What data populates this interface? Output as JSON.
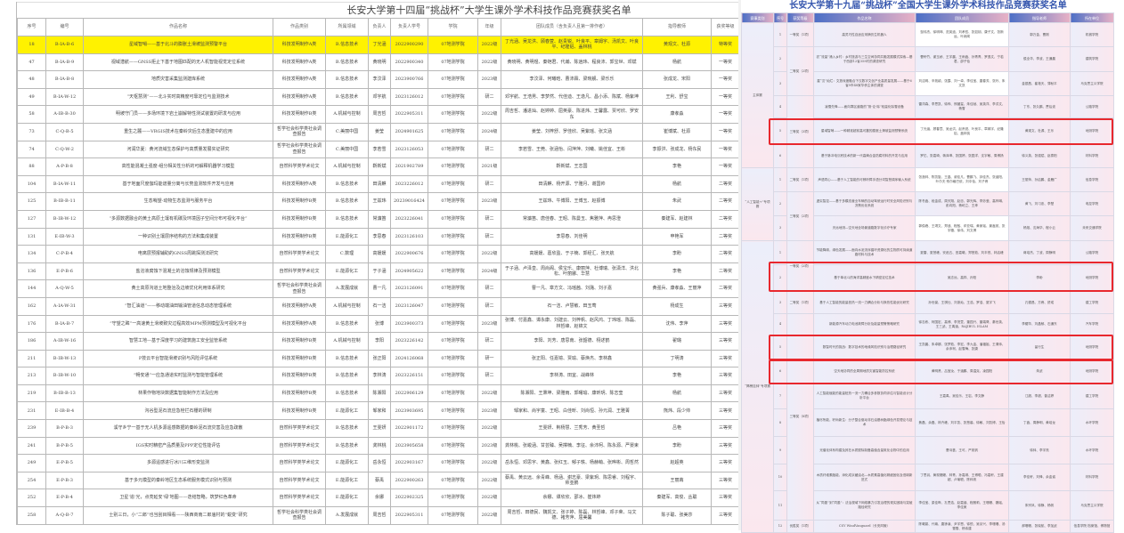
{
  "left": {
    "title": "长安大学第十四届“挑战杯”大学生课外学术科技作品竞赛获奖名单",
    "headers": [
      "序号",
      "编号",
      "作品名称",
      "作品类别",
      "所属领域",
      "负责人",
      "负责人学号",
      "学院",
      "年级",
      "团队成员（含负责人且第一排作者）",
      "指导教师",
      "获奖等级"
    ],
    "highlight_color": "#fff200",
    "rows": [
      [
        "18",
        "B-IA-B-6",
        "星域智哨——基于北斗的膨胀土滑坡监测预警平台",
        "科技发明制作A类",
        "B.信息技术",
        "丁光涵",
        "2022900290",
        "07地测学院",
        "2022级",
        "丁光涵、吴龙洪、顾春萱、赵贵锐、叶良平、章姆宇、汤凯文、叶良平、纪隆铝、盖林桃",
        "黄观文、杜源",
        "特等奖"
      ],
      [
        "47",
        "B-IA-B-9",
        "视域潜航——GNSS拒止下基于地图匹配的无人机智能视觉定位系统",
        "科技发明制作A类",
        "B.信息技术",
        "黄晓明",
        "2022900340",
        "07地测学院",
        "2022级",
        "黄晓明、黄明煜、秦铠君、代瀚、陈逍玮、程良沛、郭宝世、邓斌",
        "杨航",
        "一等奖"
      ],
      [
        "48",
        "B-IA-B-8",
        "地质灾害采集监测建库系统",
        "科技发明制作A类",
        "B.信息技术",
        "李汶泽",
        "2023900766",
        "07地测学院",
        "2023级",
        "李汶泽、何曦晗、曹沛霖、梁琬舰、梁乐乐",
        "张成龙、宋阳",
        "一等奖"
      ],
      [
        "49",
        "B-IA-W-12",
        "“天枢慧测”——北斗实时高精度可靠定位与监测技术",
        "科技发明制作A类",
        "B.信息技术",
        "邓宇航",
        "2023126012",
        "07地测学院",
        "研二",
        "邓宇航、王浩男、李梦然、代佳迪、王逸凡、昌小添、陈斌、杨紫坤",
        "王利、舒宝",
        "一等奖"
      ],
      [
        "58",
        "A-IB-B-30",
        "明坡守门员——多场环境下岩土崩解特性测试装置的研发与应用",
        "科技发明制作B类",
        "A.机械与控制",
        "周吉哲",
        "2022905311",
        "07地测学院",
        "2022级",
        "周吉哲、潘进灿、赵婷婷、屈英豪、陈进炜、王馨露、贾可欣、罗安东",
        "康孝淼",
        "一等奖"
      ],
      [
        "73",
        "C-Q-B-5",
        "重生之麓——VRGIS技术在秦岭灾后生态重建中的应用",
        "哲学社会科学类社会调查报告",
        "C.美丽中国",
        "姜莹",
        "2024901625",
        "07地测学院",
        "2024级",
        "姜莹、刘梓舒、罗佳欣、吴紫瑶、张文涵",
        "崔博斌、杜源",
        "一等奖"
      ],
      [
        "74",
        "C-Q-W-2",
        "河润华夏：黄河流域生态保护与高质量发展实证研究",
        "哲学社会科学类社会调查报告",
        "C.美丽中国",
        "李若雪",
        "2023126053",
        "07地测学院",
        "研二",
        "李若雪、王莞、张涵怡、闫萍萍、刘曦、姚佳宜、王彬",
        "李振洪、张成龙、杨东民",
        "一等奖"
      ],
      [
        "88",
        "A-P-B-8",
        "高性能混凝土强度-组分相关性分析的可解释机器学习模型",
        "自然科学类学术论文",
        "A.机械与控制",
        "靳新斌",
        "2021902789",
        "07地测学院",
        "2021级",
        "靳新斌、王志国",
        "李艳",
        "一等奖"
      ],
      [
        "104",
        "B-IA-W-11",
        "基于地面尺度伽玛能谱量分离与长势监测软件开发与应用",
        "科技发明制作A类",
        "B.信息技术",
        "田清麒",
        "2023226012",
        "07地测学院",
        "研二",
        "田清麒、杨开源、宁雅月、谢国帅",
        "杨航",
        "二等奖"
      ],
      [
        "125",
        "B-IB-B-11",
        "生态哨望-动物生态监测与服务平台",
        "科技发明制作B类",
        "B.信息技术",
        "王兹玮",
        "20239016424",
        "07地测学院",
        "2023级",
        "王兹玮、牛博阳、王博玉、赵振博",
        "朱武",
        "二等奖"
      ],
      [
        "127",
        "B-IB-W-12",
        "“多源数据融合的黄土高原土壤有机碳及环境因子空间分布可视化平台”",
        "科技发明制作B类",
        "B.信息技术",
        "常濂笛",
        "2023226041",
        "07地测学院",
        "研二",
        "常濂笛、唐佳春、王昭、陈曼玉、焦雅萍、冉思澄",
        "秦建军、赵建林",
        "二等奖"
      ],
      [
        "131",
        "E-IB-W-3",
        "一种识别土壤层序结构的方法和集成装置",
        "科技发明制作B类",
        "E.能源化工",
        "李思春",
        "2023126103",
        "07地测学院",
        "研二",
        "李思春、刘佳明",
        "申艳军",
        "二等奖"
      ],
      [
        "134",
        "C-P-B-4",
        "电离层预报辅助的GNSS周跳探测法研究",
        "自然科学类学术论文",
        "C.数理",
        "高媛媛",
        "2022900676",
        "07地测学院",
        "2022级",
        "高媛媛、葛欣盈、于子楠、郭经汇、张天航",
        "李盼",
        "二等奖"
      ],
      [
        "136",
        "E-P-B-6",
        "盐溶液腐蚀下混凝土的溶蚀规律及预测模型",
        "自然科学类学术论文",
        "E.能源化工",
        "于子涵",
        "2024905622",
        "07地测学院",
        "2024级",
        "于子涵、卢泽皇、周尚阁、侯宝乐、康丽萍、杜博瑞、张潇洋、洪北松、叶丽娜、华慧",
        "李艳",
        "二等奖"
      ],
      [
        "144",
        "A-Q-W-5",
        "黄土高原沟道土地整治及边坡优化利用体系研究",
        "哲学社会科学类社会调查报告",
        "A.发展成就",
        "曹一凡",
        "2023126091",
        "07地测学院",
        "研二",
        "曹一凡、章方文、冯瑶茜、刘潞、刘子嘉",
        "黄强兵、康孝淼、王丽萍",
        "二等奖"
      ],
      [
        "162",
        "A-IA-W-31",
        "“智汇油道”——移动端油田输油管道信息动态管理系统",
        "科技发明制作A类",
        "A.机械与控制",
        "石一洁",
        "2023126047",
        "07地测学院",
        "研二",
        "石一洁、卢慧敏、田玉莺",
        "杨成生",
        "三等奖"
      ],
      [
        "176",
        "B-IA-B-7",
        "“守望之眸”一高速黄土滑坡致灾过程高效MPM预测模型及可视化平台",
        "科技发明制作A类",
        "B.信息技术",
        "张博",
        "2023900373",
        "07地测学院",
        "2023级",
        "张博、付嘉鑫、谭永康、刘建云、刘梓帆、赵风鸿、丁玮瑶、陈磊、林哲峰、赵锦文",
        "沈伟、李萍",
        "三等奖"
      ],
      [
        "186",
        "A-IB-W-16",
        "智慧工地—基于深度学习的建筑施工安全监管系统",
        "科技发明制作B类",
        "A.机械与控制",
        "李阳",
        "2023226142",
        "07地测学院",
        "研二",
        "李阳、刘芳、唐思南、张韶德、栩述鹤",
        "翟璐",
        "三等奖"
      ],
      [
        "211",
        "B-IB-W-13",
        "P技云平台智能滑坡识别与风险评估系统",
        "科技发明制作B类",
        "B.信息技术",
        "张正阳",
        "2024126068",
        "07地测学院",
        "研一",
        "张正阳、任嘉镱、贾瑜、蔡焕杰、李林鑫",
        "丁明涛",
        "三等奖"
      ],
      [
        "213",
        "B-IB-W-10",
        "“畅安通”一应急通道实时监测与智能管理系统",
        "科技发明制作B类",
        "B.信息技术",
        "李林涛",
        "2023226151",
        "07地测学院",
        "研二",
        "李林涛、田宜、战峰林",
        "李艳",
        "三等奖"
      ],
      [
        "219",
        "B-IB-B-13",
        "林果作物地块数据集智能制作方法及应用",
        "科技发明制作B类",
        "B.信息技术",
        "陈湘阳",
        "2022906129",
        "07地测学院",
        "2022级",
        "陈湘阳、王秉坤、梁雅雨、郭曙瑜、康昕玥、陈志莹",
        "杨航",
        "三等奖"
      ],
      [
        "231",
        "E-IB-B-4",
        "沟谷型泥石流应急栓拦石栅的研制",
        "科技发明制作B类",
        "E.能源化工",
        "邹家和",
        "2023903695",
        "07地测学院",
        "2023级",
        "邹家和、尚宇童、王昭、白佳昕、刘尚恒、孙元润、王雅菁",
        "熊炜、段少帅",
        "三等奖"
      ],
      [
        "239",
        "B-P-B-3",
        "溪守乡宁一基于无人机多源遥感数据的秦岭泥石流灾害及应急疏散",
        "自然科学类学术论文",
        "B.信息技术",
        "王雯妍",
        "2022901172",
        "07地测学院",
        "2022级",
        "王雯妍、荆杨慧、兰秀芳、黄圣哲",
        "吕艳",
        "三等奖"
      ],
      [
        "241",
        "B-P-B-5",
        "IGS实时精密产品质量及PPP定位性能评估",
        "自然科学类学术论文",
        "B.信息技术",
        "龚林桃",
        "2023905658",
        "07地测学院",
        "2023级",
        "龚林桃、张峻涵、甘芸臻、吴撑楠、李征、余沛柯、陈永源、严晏束",
        "李盼",
        "三等奖"
      ],
      [
        "249",
        "E-P-B-5",
        "多源遥感进行冰川三维形变监测",
        "自然科学类学术论文",
        "E.能源化工",
        "岳永恒",
        "2022903167",
        "07地测学院",
        "2022级",
        "岳永恒、邓思宇、黄鑫、张红玉、郁子轶、杨赫萌、张晔彬、周哲然",
        "赵超英",
        "三等奖"
      ],
      [
        "254",
        "E-P-B-3",
        "基于多元模型的秦岭地区生态系统服务模式识别与预测",
        "自然科学类学术论文",
        "E.能源化工",
        "蔡禹",
        "2022900263",
        "07地测学院",
        "2022级",
        "蔡禹、黄云远、余青峰、杨涵、谢志豪、梁紫玥、陈思睿、刘程宇、师亚鹏",
        "王丽苒",
        "三等奖"
      ],
      [
        "252",
        "E-P-B-4",
        "卫星‘追’光，点亮延安‘绿’地图——迭结智略，筑梦红色革命",
        "自然科学类学术论文",
        "E.能源化工",
        "余娜",
        "2022902325",
        "07地测学院",
        "2022级",
        "余娜、谭欣欣、邵冰、崔炜婷",
        "秦建军、高俊、丛聪",
        "三等奖"
      ],
      [
        "258",
        "A-Q-B-7",
        "士别三日，小“二郎”也当刮目相看——陕西商南二郎庙村的“蜕变”研究",
        "哲学社会科学类社会调查报告",
        "A.发展成就",
        "周吉哲",
        "2022905311",
        "07地测学院",
        "2022级",
        "周吉哲、田德民、魏凯文、张子婷、陈磊、林哲峰、邓子荣、马文德、褚芳萍、屈美馨",
        "陈子聪、张美莎",
        "三等奖"
      ]
    ]
  },
  "right": {
    "title": "长安大学第十九届“挑战杯”全国大学生课外学术科技作品竞赛获奖名单",
    "headers": [
      "赛事类别",
      "序号",
      "获奖等级",
      "作品名称",
      "团队成员",
      "指导老师",
      "所在单位"
    ],
    "highlight_box_color": "#e8282e",
    "groups": [
      {
        "category": "主体赛",
        "rows": [
          [
            "1",
            "一等奖（1项）",
            "高灵巧性自适应采摘仿生机器人",
            "邹伟杰、徐明坤、范英迪、刘孝哲、张如韧、康子文、张斯运、叶润闻",
            "郭万金、曹刚",
            "机械学院"
          ],
          [
            "2",
            "二等奖（2项）",
            "农“流量”涌入乡村：乡村旅游与三生空间协同共融发展模式探索—基于西部12省358村的调查研究",
            "曹轩竹、谢玉娇、王宇晨、王雨鑫、孙青青、罗逸文、宁若君、邵子怡",
            "侯全华、李波、王通晨",
            "建筑学院"
          ],
          [
            "3",
            "",
            "星“汉”灿烂：文旅深度融合下汉数字文创产业高质量发展——基于6省9市48家华侨主体的调查",
            "刘洁明、辛苑颖、张露、刘一卓、李佳宝、唐春芳、张玲、朱文凯",
            "金银昌、崔艳天、薄秋平",
            "马克思主义学院"
          ],
          [
            "4",
            "三等奖（3项）",
            "凌雪先锋——面向寒区道路的“测-论-除”轻量化除雪设备",
            "雷洋森、李思凯、徐烨、邢國玺、朱佳帧、吴英洋、李洪文、杨雪",
            "丁东、张久鹏、贾后波",
            "公路学院"
          ],
          [
            "5",
            "",
            "星域智哨——一种精准超前高可靠的膨胀土滑坡监测预警系统",
            "丁光涵、顾春萱、吴龙洪、赵贵锐、叶良平、章姆宇、纪隆铝、盖林桃",
            "黄观文、杜源、王乐",
            "地测学院"
          ],
          [
            "6",
            "",
            "基于脉冲电沉积技术的新一代高熵合金防腐材料的开发与应用",
            "罗忆、张嘉琦、蒋泽坤、张国婷、张园洋、沈宇敏、周博扬",
            "徐义英、张强斌、赵泰阳",
            "材料学院"
          ]
        ]
      },
      {
        "category": "“人工智能+”专项赛",
        "rows": [
          [
            "1",
            "二等奖（1项）",
            "声语同心——基于人工智能的可辨听障手语分词智慧调序输入系统",
            "张洛林、陈凯旋、王晶、谢佳凡、曹鹏飞、钟佳杰、张涵阳、叶尔夫·别尔格巴依、刘中怡、刘子睿",
            "王丽萍、孙启鹏、金雁广",
            "信息学院"
          ],
          [
            "2",
            "三等奖（2项）",
            "虚实智控——基于多模态营业车辆的自动驾驶运行时安全风险识别与决策优化系统",
            "陈冬鑫、段金成、周天翔、赵忠、郭光辉、李妙莹、高梓琳、彭向阳、杨屹立、王烨",
            "黄飞、刘习忠、李楚",
            "电控学院"
          ],
          [
            "3",
            "",
            "天远地测—空天地全场景道路数字化诊疗专家",
            "郭俊峰、王靖文、郑迪、程敖、邓亚瑞、黄家瑶、景鑫苑、张宇璐、徐伟、刘文博",
            "杨旭、沈海华、程小云",
            "未来交通学院"
          ]
        ]
      },
      {
        "category": "“揭榜挂帅”专项赛",
        "rows": [
          [
            "1",
            "一等奖（2项）",
            "节能降碳，绿色发展——面向水泥流序循环资源化的生物质可持续道路材料与技术",
            "夏雷、夏慧峰、安函五、田嘉曦、郑慧茹、刘丰悦、林启峰",
            "蒋培杰、丁波、周静明",
            "公路学院"
          ],
          [
            "2",
            "",
            "基于单北斗的海洋高精度水下精密定位技术",
            "吴志远、高祥、孙阳",
            "李盼",
            "地测学院"
          ],
          [
            "3",
            "二等奖（1项）",
            "基于人工智能的能量桩热一流一力耦合分析与换热性能优化研究",
            "孙世豪、王祺仕、刘浙灿、王浩、罗浩、夏宇飞",
            "孔德昌、方睿、舒成",
            "建工学院"
          ],
          [
            "4",
            "三等奖（8项）",
            "新能源汽车动力电池故障分析及能量预警策略研究",
            "徐志栋、柯国宏、高博、李茂萱、董园兴、董端哥、秦世英、王三武、王禹涵、RAJIBUL ISLAM",
            "李耀华、刘晶郁、石通东",
            "汽车学院"
          ],
          [
            "5",
            "",
            "数智时代的挑战：数字技术的地缘风险识别与治理路径研究",
            "王凯晨、朱卓娜、张梦茹、李宏、李九金、潘福姐、王清帅、余沛柯、赵雪梅、张婕",
            "留行生",
            "地测学院"
          ],
          [
            "6",
            "",
            "空天地协同的全周期地质灾害智能防控系统",
            "黄明贤、吕宝汝、于涵鹏、周温克、凌园阳",
            "朱武",
            "地测学院"
          ],
          [
            "7",
            "",
            "人工智能赋能的能量桩热一流一力耦合多参数协同评估与智能设计分析平台",
            "王嘉禹、吴佳乐、王岩、李文静",
            "江超、李超、曾洁婷",
            "建工学院"
          ],
          [
            "8",
            "",
            "植尽所能，籽尚新生：分子整合驱动非石油基树脂绿色开发理论与技术",
            "焦磊、余磊、林卉峰、刘平凯、张慧馨、徐敏、刘凯博、王怡",
            "丁鑫、周静明、黄培龙",
            "水环学院"
          ],
          [
            "9",
            "",
            "光催化体系构建及其在水质脱除制备高值含量氮化合物中的应用",
            "曹诗荟、王可、严苑帆",
            "徐帅、李宇亮",
            "水环学院"
          ],
          [
            "10",
            "",
            "木质纤维素脂能，添化成京藏油北—木质素高值化精细固化及低碳新范式",
            "丁思羽、黄现姗姗、林青、孙嘉琪、王博聪、冯嘉轩、王建超、卢瑜聪、陈科帆",
            "李佳轩、刘锋、余金诚",
            "材料学院"
          ],
          [
            "11",
            "",
            "从“同墨”到“同墨”：法治视域下网络暴力引发治理的现实困境与突破路径研究",
            "李佳宝、梁佳晔、孔思浩、赵嘉涵、程雅莉、王珊珊、魏瑶、李佳美",
            "朱宗凤、徐静、杨帆",
            "马克思主义学院"
          ],
          [
            "12",
            "优胜奖（1项）",
            "CSY WindVanguard（长安风陵）",
            "陈曦蔓、代瑜、唐铮凌、尹宇恩、徐悦、吴京兴、李珊珊、汤雪雪、杨伟建",
            "郝珊珊、张晓航、李加武",
            "信息学院 档案馆、博物馆"
          ]
        ]
      }
    ]
  }
}
